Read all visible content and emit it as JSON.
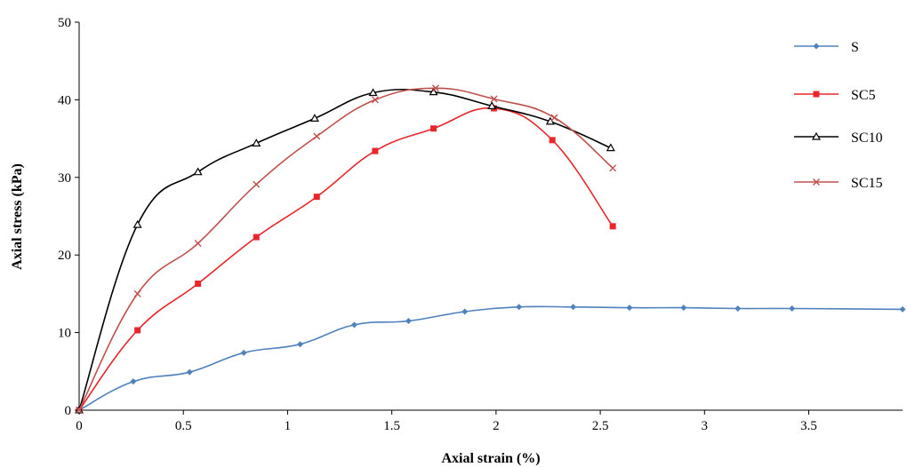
{
  "chart_data": {
    "type": "line",
    "title": "",
    "xlabel": "Axial strain (%)",
    "ylabel": "Axial stress (kPa)",
    "xlim": [
      0,
      3.95
    ],
    "ylim": [
      0,
      50
    ],
    "x_ticks": [
      0,
      0.5,
      1,
      1.5,
      2,
      2.5,
      3,
      3.5
    ],
    "x_tick_labels": [
      "0",
      "0.5",
      "1",
      "1.5",
      "2",
      "2.5",
      "3",
      "3.5"
    ],
    "y_ticks": [
      0,
      10,
      20,
      30,
      40,
      50
    ],
    "y_tick_labels": [
      "0",
      "10",
      "20",
      "30",
      "40",
      "50"
    ],
    "grid": false,
    "legend_position": "right",
    "series": [
      {
        "name": "S",
        "color": "#4F81BD",
        "marker": "diamond",
        "x": [
          0,
          0.26,
          0.53,
          0.79,
          1.06,
          1.32,
          1.58,
          1.85,
          2.11,
          2.37,
          2.64,
          2.9,
          3.16,
          3.42,
          3.95
        ],
        "y": [
          0,
          3.7,
          4.9,
          7.4,
          8.5,
          11.0,
          11.5,
          12.7,
          13.3,
          13.3,
          13.2,
          13.2,
          13.1,
          13.1,
          13.0
        ]
      },
      {
        "name": "SC5",
        "color": "#E8262C",
        "marker": "square",
        "x": [
          0,
          0.28,
          0.57,
          0.85,
          1.14,
          1.42,
          1.7,
          1.99,
          2.27,
          2.56
        ],
        "y": [
          0,
          10.3,
          16.3,
          22.3,
          27.5,
          33.4,
          36.3,
          38.9,
          34.8,
          23.7
        ]
      },
      {
        "name": "SC10",
        "color": "#000000",
        "marker": "triangle",
        "x": [
          0,
          0.28,
          0.57,
          0.85,
          1.13,
          1.41,
          1.7,
          1.98,
          2.26,
          2.55
        ],
        "y": [
          0,
          23.9,
          30.7,
          34.4,
          37.6,
          40.9,
          41.0,
          39.2,
          37.2,
          33.8
        ]
      },
      {
        "name": "SC15",
        "color": "#C0504D",
        "marker": "x",
        "x": [
          0,
          0.28,
          0.57,
          0.85,
          1.14,
          1.42,
          1.71,
          1.99,
          2.28,
          2.56
        ],
        "y": [
          0,
          15.0,
          21.5,
          29.1,
          35.3,
          40.0,
          41.5,
          40.1,
          37.7,
          31.2
        ]
      }
    ]
  }
}
